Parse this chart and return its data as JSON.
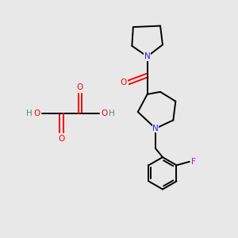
{
  "background_color": "#e8e8e8",
  "atom_colors": {
    "C": "#000000",
    "N": "#2020ff",
    "O": "#ff0000",
    "F": "#dd00dd",
    "H": "#558888"
  },
  "bond_color": "#000000",
  "bond_width": 1.4,
  "figsize": [
    3.0,
    3.0
  ],
  "dpi": 100
}
